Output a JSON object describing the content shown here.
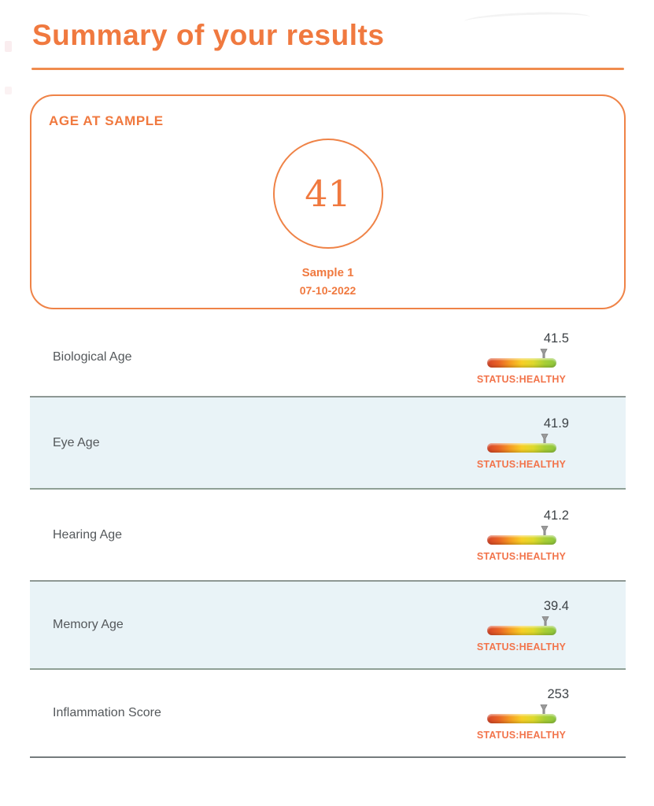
{
  "page_title": "Summary of your results",
  "card": {
    "heading": "AGE AT SAMPLE",
    "age_value": "41",
    "sample_name": "Sample 1",
    "sample_date": "07-10-2022"
  },
  "rows": [
    {
      "label": "Biological Age",
      "value": "41.5",
      "status": "STATUS:HEALTHY",
      "marker_pct": 82,
      "shaded": false
    },
    {
      "label": "Eye Age",
      "value": "41.9",
      "status": "STATUS:HEALTHY",
      "marker_pct": 84,
      "shaded": true
    },
    {
      "label": "Hearing Age",
      "value": "41.2",
      "status": "STATUS:HEALTHY",
      "marker_pct": 83,
      "shaded": false
    },
    {
      "label": "Memory Age",
      "value": "39.4",
      "status": "STATUS:HEALTHY",
      "marker_pct": 85,
      "shaded": true
    },
    {
      "label": "Inflammation Score",
      "value": "253",
      "status": "STATUS:HEALTHY",
      "marker_pct": 82,
      "shaded": false
    }
  ],
  "colors": {
    "accent": "#f0793f",
    "accent_border": "#ef8347",
    "title_rule": "#f08c4e",
    "status_text": "#f2744b",
    "shaded_row_bg": "#e9f3f7",
    "label_text": "#54585b",
    "value_text": "#3d4246",
    "marker": "#9a9a9a",
    "gauge_gradient": [
      "#d54427",
      "#e96325",
      "#f59b21",
      "#f7cf25",
      "#ddd92c",
      "#a8cf35",
      "#8cc63f"
    ]
  }
}
